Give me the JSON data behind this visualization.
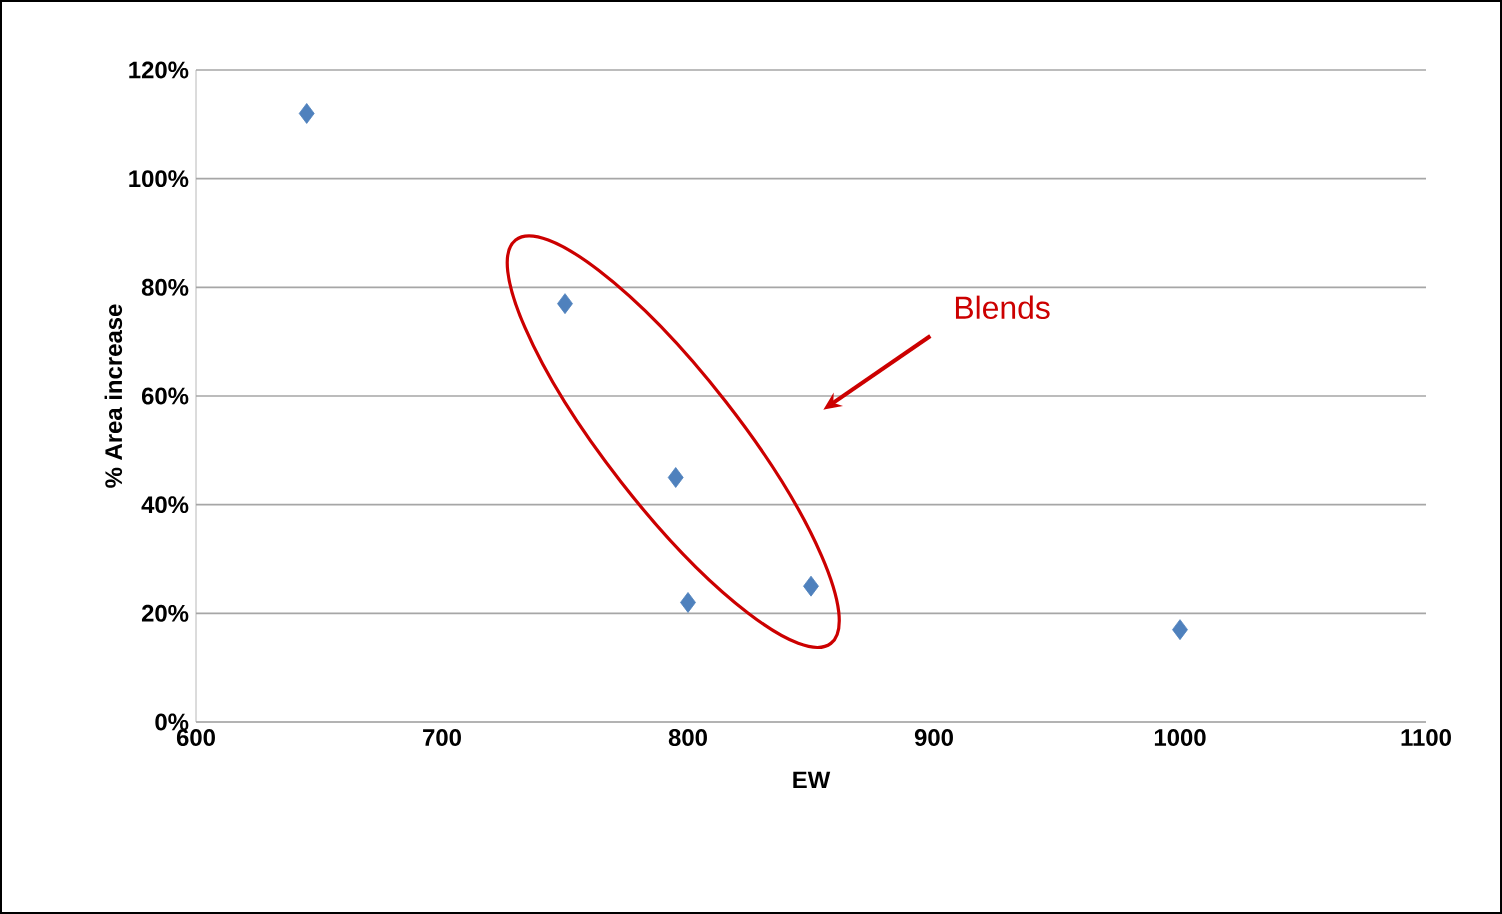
{
  "chart_data": {
    "type": "scatter",
    "xlabel": "EW",
    "ylabel": "% Area increase",
    "x": [
      645,
      750,
      795,
      800,
      850,
      1000
    ],
    "values": [
      112,
      77,
      45,
      22,
      25,
      17
    ],
    "color": "#4f81bd",
    "marker": "diamond",
    "xlim": [
      600,
      1100
    ],
    "xticks": [
      600,
      700,
      800,
      900,
      1000,
      1100
    ],
    "ylim": [
      0,
      120
    ],
    "yticks": [
      {
        "value": 0,
        "label": "0%"
      },
      {
        "value": 20,
        "label": "20%"
      },
      {
        "value": 40,
        "label": "40%"
      },
      {
        "value": 60,
        "label": "60%"
      },
      {
        "value": 80,
        "label": "80%"
      },
      {
        "value": 100,
        "label": "100%"
      },
      {
        "value": 120,
        "label": "120%"
      }
    ],
    "grid": "y",
    "annotations": [
      "Blends"
    ]
  }
}
